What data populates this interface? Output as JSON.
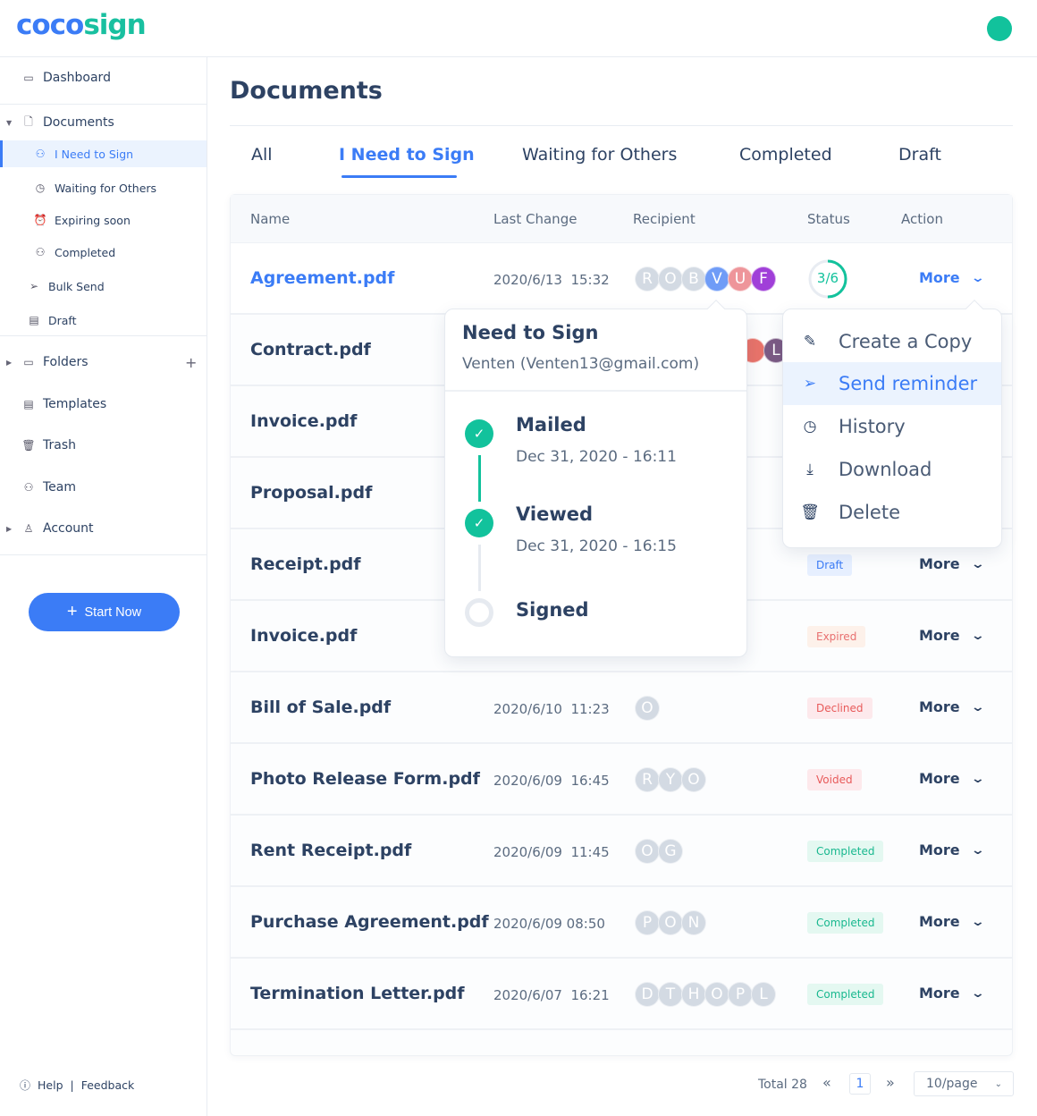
{
  "brand": {
    "part1": "coco",
    "part2": "sign"
  },
  "sidebar": {
    "dashboard": "Dashboard",
    "documents": "Documents",
    "doc_items": [
      "I Need to Sign",
      "Waiting for Others",
      "Expiring soon",
      "Completed"
    ],
    "bulk_send": "Bulk Send",
    "draft": "Draft",
    "folders": "Folders",
    "templates": "Templates",
    "trash": "Trash",
    "team": "Team",
    "account": "Account",
    "start_now": "Start Now",
    "help": "Help",
    "separator": "|",
    "feedback": "Feedback"
  },
  "main": {
    "title": "Documents",
    "tabs": [
      "All",
      "I Need to Sign",
      "Waiting for Others",
      "Completed",
      "Draft"
    ],
    "active_tab": "I Need to Sign",
    "columns": [
      "Name",
      "Last Change",
      "Recipient",
      "Status",
      "Action"
    ],
    "more_label": "More",
    "rows": [
      {
        "name": "Agreement.pdf",
        "date": "2020/6/13  15:32",
        "recipients": [
          [
            "R",
            "#d3dae3"
          ],
          [
            "O",
            "#d3dae3"
          ],
          [
            "B",
            "#d3dae3"
          ],
          [
            "V",
            "#6f9cf7"
          ],
          [
            "U",
            "#ee959a"
          ],
          [
            "F",
            "#a03fd8"
          ]
        ],
        "progress": "3/6",
        "progress_value": 0.5
      },
      {
        "name": "Contract.pdf",
        "date": "",
        "recipients": [
          [
            "",
            "#e8736a"
          ],
          [
            "L",
            "#7b5a84"
          ]
        ]
      },
      {
        "name": "Invoice.pdf",
        "date": "",
        "recipients": []
      },
      {
        "name": "Proposal.pdf",
        "date": "",
        "recipients": []
      },
      {
        "name": "Receipt.pdf",
        "date": "",
        "recipients": [],
        "status": "Draft",
        "status_color": "#3b7cf6",
        "status_bg": "#e6efff"
      },
      {
        "name": "Invoice.pdf",
        "date": "",
        "recipients": [],
        "status": "Expired",
        "status_color": "#e87070",
        "status_bg": "#fdf1ea"
      },
      {
        "name": "Bill of Sale.pdf",
        "date": "2020/6/10  11:23",
        "recipients": [
          [
            "O",
            "#d3dae3"
          ]
        ],
        "status": "Declined",
        "status_color": "#e85a5a",
        "status_bg": "#fde9ec"
      },
      {
        "name": "Photo Release Form.pdf",
        "date": "2020/6/09  16:45",
        "recipients": [
          [
            "R",
            "#d3dae3"
          ],
          [
            "Y",
            "#d3dae3"
          ],
          [
            "O",
            "#d3dae3"
          ]
        ],
        "status": "Voided",
        "status_color": "#e85a5a",
        "status_bg": "#fde9ec"
      },
      {
        "name": "Rent Receipt.pdf",
        "date": "2020/6/09  11:45",
        "recipients": [
          [
            "O",
            "#d3dae3"
          ],
          [
            "G",
            "#d3dae3"
          ]
        ],
        "status": "Completed",
        "status_color": "#19b88f",
        "status_bg": "#e4f8f1"
      },
      {
        "name": "Purchase Agreement.pdf",
        "date": "2020/6/09 08:50",
        "recipients": [
          [
            "P",
            "#d3dae3"
          ],
          [
            "O",
            "#d3dae3"
          ],
          [
            "N",
            "#d3dae3"
          ]
        ],
        "status": "Completed",
        "status_color": "#19b88f",
        "status_bg": "#e4f8f1"
      },
      {
        "name": "Termination Letter.pdf",
        "date": "2020/6/07  16:21",
        "recipients": [
          [
            "D",
            "#d3dae3"
          ],
          [
            "T",
            "#d3dae3"
          ],
          [
            "H",
            "#d3dae3"
          ],
          [
            "O",
            "#d3dae3"
          ],
          [
            "P",
            "#d3dae3"
          ],
          [
            "L",
            "#d3dae3"
          ]
        ],
        "status": "Completed",
        "status_color": "#19b88f",
        "status_bg": "#e4f8f1"
      }
    ]
  },
  "recipient_popover": {
    "title": "Need to Sign",
    "recipient": "Venten (Venten13@gmail.com)",
    "steps": [
      {
        "label": "Mailed",
        "date": "Dec 31, 2020 - 16:11",
        "done": true
      },
      {
        "label": "Viewed",
        "date": "Dec 31, 2020 - 16:15",
        "done": true
      },
      {
        "label": "Signed",
        "date": "",
        "done": false
      }
    ]
  },
  "action_menu": {
    "items": [
      {
        "label": "Create a Copy",
        "icon": "pencil-icon"
      },
      {
        "label": "Send reminder",
        "icon": "paper-plane-icon",
        "highlighted": true
      },
      {
        "label": "History",
        "icon": "clock-icon"
      },
      {
        "label": "Download",
        "icon": "download-icon"
      },
      {
        "label": "Delete",
        "icon": "trash-icon"
      }
    ]
  },
  "pagination": {
    "total": "Total 28",
    "page": "1",
    "page_size": "10/page"
  },
  "colors": {
    "primary": "#3b7cf6",
    "accent": "#12c29c",
    "text": "#2d4263"
  }
}
